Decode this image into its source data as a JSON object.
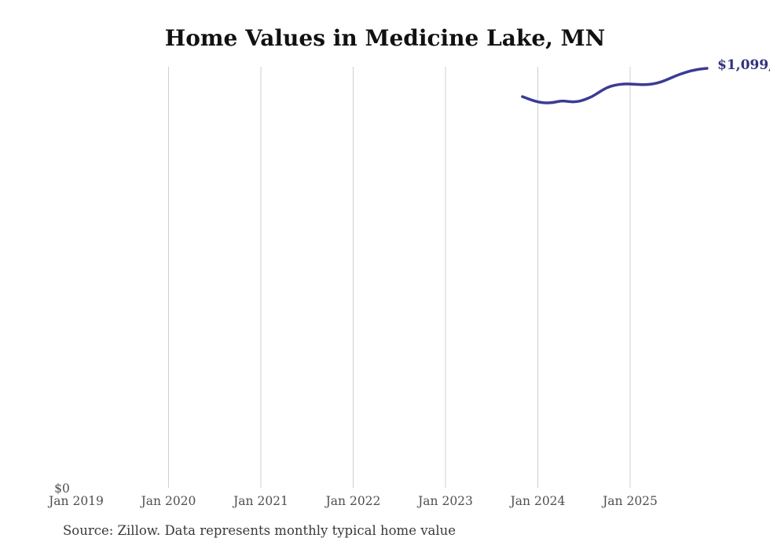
{
  "chart_data": {
    "type": "line",
    "title": "Home Values in Medicine Lake, MN",
    "source_note": "Source: Zillow. Data represents monthly typical home value",
    "legend": "none",
    "grid": "vertical-only",
    "x_axis": {
      "ticks": [
        {
          "label": "Jan 2019",
          "gridline": false
        },
        {
          "label": "Jan 2020",
          "gridline": true
        },
        {
          "label": "Jan 2021",
          "gridline": true
        },
        {
          "label": "Jan 2022",
          "gridline": true
        },
        {
          "label": "Jan 2023",
          "gridline": true
        },
        {
          "label": "Jan 2024",
          "gridline": true
        },
        {
          "label": "Jan 2025",
          "gridline": true
        }
      ]
    },
    "y_axis": {
      "zero_label": "$0",
      "ylim": [
        0,
        1130000
      ]
    },
    "series": [
      {
        "name": "Monthly typical home value",
        "color": "#3b3b94",
        "months": [
          "2023-11",
          "2023-12",
          "2024-01",
          "2024-02",
          "2024-03",
          "2024-04",
          "2024-05",
          "2024-06",
          "2024-07",
          "2024-08",
          "2024-09",
          "2024-10",
          "2024-11",
          "2024-12",
          "2025-01",
          "2025-02",
          "2025-03",
          "2025-04",
          "2025-05",
          "2025-06",
          "2025-07",
          "2025-08",
          "2025-09",
          "2025-10",
          "2025-11"
        ],
        "values": [
          1025000,
          1017000,
          1011000,
          1008000,
          1009000,
          1014000,
          1012000,
          1011000,
          1016000,
          1024000,
          1037000,
          1049000,
          1055000,
          1058000,
          1058000,
          1057000,
          1056000,
          1058000,
          1063000,
          1071000,
          1080000,
          1087000,
          1093000,
          1097000,
          1099000
        ]
      }
    ],
    "end_label": "$1,099,",
    "colors": {
      "line": "#3b3b94",
      "end_label": "#32327d",
      "axis_text": "#4f4f4f",
      "gridline": "#cfcfcf",
      "title": "#111111",
      "source_text": "#3a3a3a"
    }
  }
}
